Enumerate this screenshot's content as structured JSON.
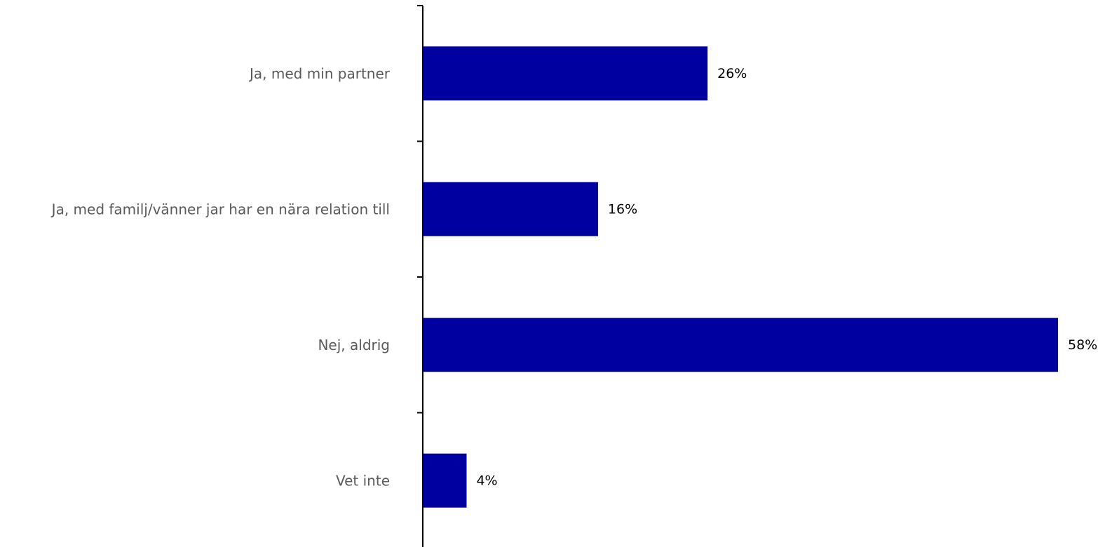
{
  "chart_data": {
    "type": "bar",
    "orientation": "horizontal",
    "categories": [
      "Ja, med min partner",
      "Ja, med familj/vänner jar har en nära relation till",
      "Nej, aldrig",
      "Vet inte"
    ],
    "values": [
      26,
      16,
      58,
      4
    ],
    "value_labels": [
      "26%",
      "16%",
      "58%",
      "4%"
    ],
    "unit": "%",
    "xlim": [
      0,
      58
    ],
    "grid": false,
    "legend": "none"
  },
  "colors": {
    "bar": "#0000a0",
    "category_text": "#595959",
    "value_text": "#000000",
    "axis": "#000000"
  }
}
